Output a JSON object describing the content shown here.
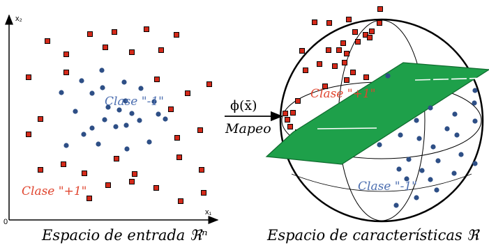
{
  "left_panel": {
    "y_axis_label": "x₂",
    "x_axis_label": "x₁",
    "origin_label": "0",
    "class_minus_label": "Clase \"-1\"",
    "class_plus_label": "Clase \"+1\"",
    "caption": "Espacio de entrada ℜⁿ"
  },
  "mapping": {
    "phi_label": "ϕ(x̄)",
    "mapeo_label": "Mapeo"
  },
  "right_panel": {
    "class_plus_label": "Clase \"+1\"",
    "class_minus_label": "Clase \"-1\"",
    "caption": "Espacio de características ℜ"
  },
  "colors": {
    "red": "#d42a1a",
    "blue": "#2e4f86",
    "green": "#1ea04a",
    "label_red": "#e0452f",
    "label_blue": "#4d6fb0"
  }
}
